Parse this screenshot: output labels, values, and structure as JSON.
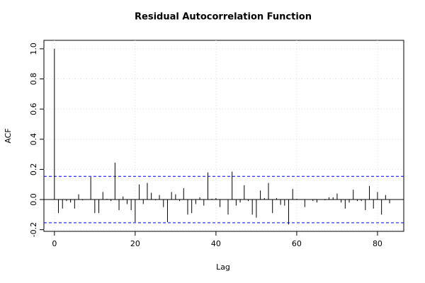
{
  "chart_data": {
    "type": "acf",
    "title": "Residual Autocorrelation Function",
    "x_label": "Lag",
    "y_label": "ACF",
    "x": [
      0,
      1,
      2,
      3,
      4,
      5,
      6,
      7,
      8,
      9,
      10,
      11,
      12,
      13,
      14,
      15,
      16,
      17,
      18,
      19,
      20,
      21,
      22,
      23,
      24,
      25,
      26,
      27,
      28,
      29,
      30,
      31,
      32,
      33,
      34,
      35,
      36,
      37,
      38,
      39,
      40,
      41,
      42,
      43,
      44,
      45,
      46,
      47,
      48,
      49,
      50,
      51,
      52,
      53,
      54,
      55,
      56,
      57,
      58,
      59,
      60,
      61,
      62,
      63,
      64,
      65,
      66,
      67,
      68,
      69,
      70,
      71,
      72,
      73,
      74,
      75,
      76,
      77,
      78,
      79,
      80,
      81,
      82,
      83
    ],
    "values": [
      1.0,
      -0.09,
      -0.06,
      -0.01,
      -0.02,
      -0.06,
      0.035,
      -0.005,
      0.0,
      0.15,
      -0.09,
      -0.09,
      0.05,
      0.005,
      -0.01,
      0.245,
      -0.07,
      0.02,
      -0.03,
      -0.07,
      -0.15,
      0.1,
      -0.03,
      0.11,
      0.045,
      -0.005,
      0.03,
      -0.05,
      -0.15,
      0.05,
      0.035,
      -0.01,
      0.075,
      -0.1,
      -0.09,
      -0.03,
      0.015,
      -0.04,
      0.18,
      0.005,
      0.01,
      -0.05,
      0.0,
      -0.1,
      0.185,
      -0.04,
      -0.02,
      0.095,
      -0.01,
      -0.1,
      -0.12,
      0.06,
      0.01,
      0.11,
      -0.09,
      0.01,
      -0.035,
      -0.04,
      -0.165,
      0.07,
      0.005,
      0.0,
      -0.05,
      0.0,
      -0.01,
      -0.02,
      0.0,
      -0.005,
      0.015,
      0.015,
      0.04,
      -0.02,
      -0.06,
      -0.02,
      0.065,
      -0.01,
      -0.01,
      -0.07,
      0.09,
      -0.06,
      0.05,
      -0.1,
      0.03,
      -0.025
    ],
    "color": "#000000",
    "ci": 0.154,
    "ci_color": "#0000ff",
    "xlim": [
      -2.6,
      86.5
    ],
    "ylim": [
      -0.211,
      1.056
    ],
    "xticks": [
      0,
      20,
      40,
      60,
      80
    ],
    "yticks": [
      {
        "value": -0.2,
        "label": "-0.2"
      },
      {
        "value": 0,
        "label": "0.0"
      },
      {
        "value": 0.2,
        "label": "0.2"
      },
      {
        "value": 0.4,
        "label": "0.4"
      },
      {
        "value": 0.6,
        "label": "0.6"
      },
      {
        "value": 0.8,
        "label": "0.8"
      },
      {
        "value": 1.0,
        "label": "1.0"
      }
    ],
    "grid": true
  }
}
